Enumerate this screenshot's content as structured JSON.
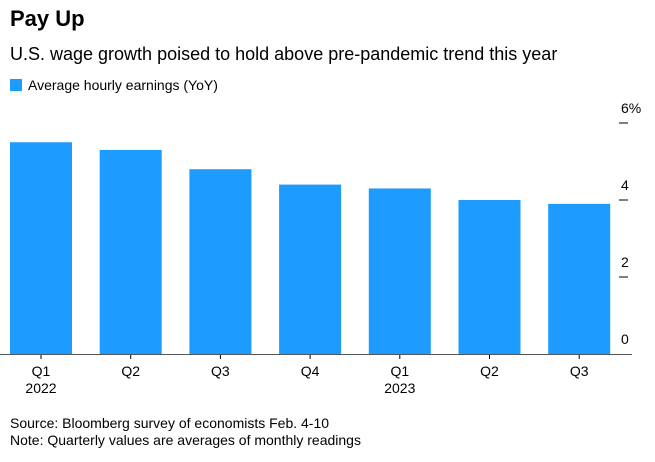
{
  "header": {
    "title": "Pay Up",
    "subtitle": "U.S. wage growth poised to hold above pre-pandemic trend this year"
  },
  "footer": {
    "source": "Source: Bloomberg survey of economists Feb. 4-10",
    "note": "Note: Quarterly values are averages of monthly readings"
  },
  "chart_data": {
    "type": "bar",
    "title": "Pay Up",
    "subtitle": "U.S. wage growth poised to hold above pre-pandemic trend this year",
    "categories": [
      "Q1 2022",
      "Q2",
      "Q3",
      "Q4",
      "Q1 2023",
      "Q2",
      "Q3"
    ],
    "tick_labels": [
      [
        "Q1",
        "2022"
      ],
      [
        "Q2",
        ""
      ],
      [
        "Q3",
        ""
      ],
      [
        "Q4",
        ""
      ],
      [
        "Q1",
        "2023"
      ],
      [
        "Q2",
        ""
      ],
      [
        "Q3",
        ""
      ]
    ],
    "series": [
      {
        "name": "Average hourly earnings (YoY)",
        "color": "#1e9bff",
        "values": [
          5.5,
          5.3,
          4.8,
          4.4,
          4.3,
          4.0,
          3.9
        ]
      }
    ],
    "ylim": [
      0,
      6
    ],
    "yticks": [
      0,
      2,
      4,
      6
    ],
    "ytick_labels": [
      "0",
      "2",
      "4",
      "6%"
    ],
    "y_axis_side": "right",
    "grid": false,
    "legend_position": "top-left"
  }
}
